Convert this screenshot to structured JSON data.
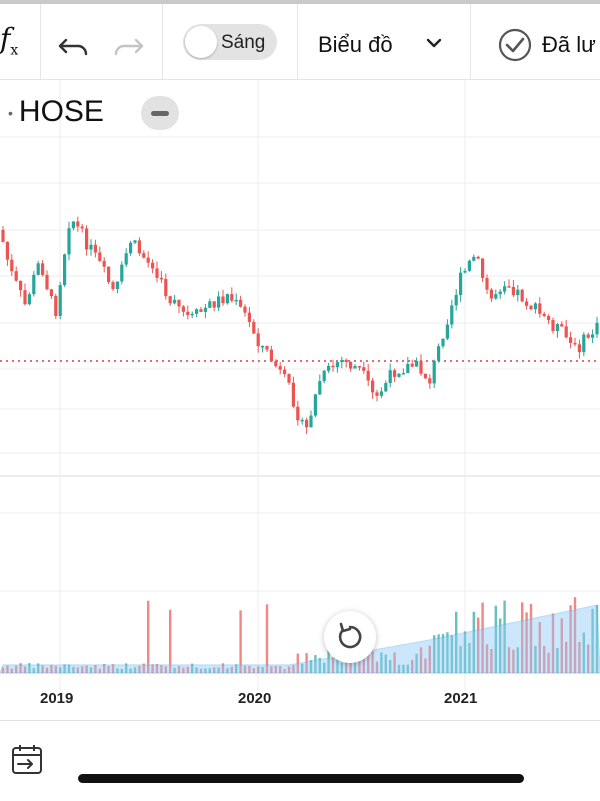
{
  "toolbar": {
    "formula_icon": "function-icon",
    "undo_icon": "undo-icon",
    "redo_icon": "redo-icon",
    "theme_toggle_label": "Sáng",
    "chart_type_label": "Biểu đồ",
    "checked_label": "Đã lư"
  },
  "symbol": {
    "name": "HOSE"
  },
  "colors": {
    "up": "#26a69a",
    "down": "#ef5350",
    "ref_line": "#e53935",
    "volume_area": "#90caf9"
  },
  "chart_data": {
    "type": "candlestick",
    "x_axis": {
      "tick_labels": [
        "2019",
        "2020",
        "2021"
      ]
    },
    "y_axis": {
      "visible_labels": false
    },
    "reference_line": "dotted horizontal price line",
    "volume_panel": true,
    "grid": true
  },
  "controls": {
    "reset_icon": "reset-zoom-icon",
    "calendar_icon": "calendar-range-icon"
  }
}
